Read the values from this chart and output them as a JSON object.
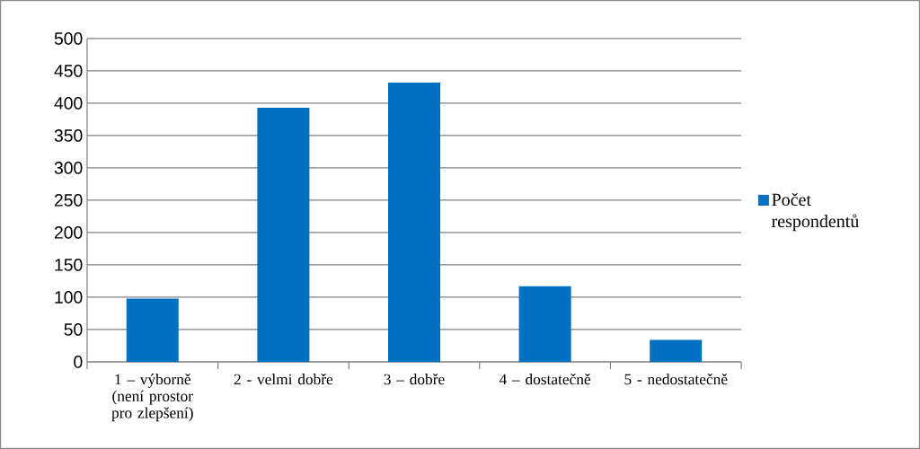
{
  "chart_data": {
    "type": "bar",
    "categories": [
      "1 – výborně (není prostor pro zlepšení)",
      "2 - velmi dobře",
      "3 – dobře",
      "4 – dostatečně",
      "5 - nedostatečně"
    ],
    "series": [
      {
        "name": "Počet respondentů",
        "color": "#0070c0",
        "values": [
          98,
          393,
          432,
          117,
          34
        ]
      }
    ],
    "ylim": [
      0,
      500
    ],
    "yticks": [
      0,
      50,
      100,
      150,
      200,
      250,
      300,
      350,
      400,
      450,
      500
    ],
    "grid": "y",
    "legend": "right"
  }
}
